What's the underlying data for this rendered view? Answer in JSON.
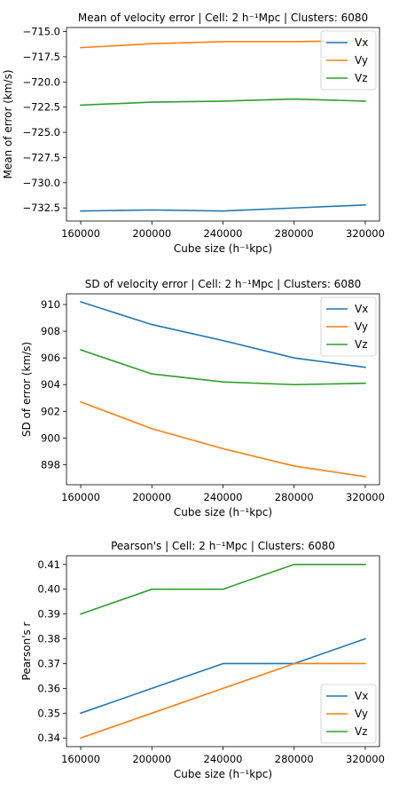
{
  "chart_data": [
    {
      "type": "line",
      "title": "Mean of velocity error | Cell: 2 h⁻¹Mpc | Clusters: 6080",
      "xlabel": "Cube size (h⁻¹kpc)",
      "ylabel": "Mean of error (km/s)",
      "x": [
        160000,
        200000,
        240000,
        280000,
        320000
      ],
      "xticks": [
        "160000",
        "200000",
        "240000",
        "280000",
        "320000"
      ],
      "ylim": [
        -733.8,
        -714.6
      ],
      "yticks": [
        -715.0,
        -717.5,
        -720.0,
        -722.5,
        -725.0,
        -727.5,
        -730.0,
        -732.5
      ],
      "ytick_labels": [
        "−715.0",
        "−717.5",
        "−720.0",
        "−722.5",
        "−725.0",
        "−727.5",
        "−730.0",
        "−732.5"
      ],
      "legend": "top-right",
      "series": [
        {
          "name": "Vx",
          "color": "#1f77b4",
          "values": [
            -732.8,
            -732.7,
            -732.8,
            -732.5,
            -732.2
          ]
        },
        {
          "name": "Vy",
          "color": "#ff7f0e",
          "values": [
            -716.6,
            -716.2,
            -716.0,
            -716.0,
            -715.9
          ]
        },
        {
          "name": "Vz",
          "color": "#2ca02c",
          "values": [
            -722.3,
            -722.0,
            -721.9,
            -721.7,
            -721.9
          ]
        }
      ]
    },
    {
      "type": "line",
      "title": "SD of velocity error | Cell: 2 h⁻¹Mpc | Clusters: 6080",
      "xlabel": "Cube size (h⁻¹kpc)",
      "ylabel": "SD of error (km/s)",
      "x": [
        160000,
        200000,
        240000,
        280000,
        320000
      ],
      "xticks": [
        "160000",
        "200000",
        "240000",
        "280000",
        "320000"
      ],
      "ylim": [
        896.5,
        910.8
      ],
      "yticks": [
        898,
        900,
        902,
        904,
        906,
        908,
        910
      ],
      "ytick_labels": [
        "898",
        "900",
        "902",
        "904",
        "906",
        "908",
        "910"
      ],
      "legend": "top-right",
      "series": [
        {
          "name": "Vx",
          "color": "#1f77b4",
          "values": [
            910.2,
            908.5,
            907.3,
            906.0,
            905.3
          ]
        },
        {
          "name": "Vy",
          "color": "#ff7f0e",
          "values": [
            902.7,
            900.7,
            899.2,
            897.9,
            897.1
          ]
        },
        {
          "name": "Vz",
          "color": "#2ca02c",
          "values": [
            906.6,
            904.8,
            904.2,
            904.0,
            904.1
          ]
        }
      ]
    },
    {
      "type": "line",
      "title": "Pearson's | Cell: 2 h⁻¹Mpc | Clusters: 6080",
      "xlabel": "Cube size (h⁻¹kpc)",
      "ylabel": "Pearson's r",
      "x": [
        160000,
        200000,
        240000,
        280000,
        320000
      ],
      "xticks": [
        "160000",
        "200000",
        "240000",
        "280000",
        "320000"
      ],
      "ylim": [
        0.3365,
        0.4135
      ],
      "yticks": [
        0.34,
        0.35,
        0.36,
        0.37,
        0.38,
        0.39,
        0.4,
        0.41
      ],
      "ytick_labels": [
        "0.34",
        "0.35",
        "0.36",
        "0.37",
        "0.38",
        "0.39",
        "0.40",
        "0.41"
      ],
      "legend": "bottom-right",
      "series": [
        {
          "name": "Vx",
          "color": "#1f77b4",
          "values": [
            0.35,
            0.36,
            0.37,
            0.37,
            0.38
          ]
        },
        {
          "name": "Vy",
          "color": "#ff7f0e",
          "values": [
            0.34,
            0.35,
            0.36,
            0.37,
            0.37
          ]
        },
        {
          "name": "Vz",
          "color": "#2ca02c",
          "values": [
            0.39,
            0.4,
            0.4,
            0.41,
            0.41
          ]
        }
      ]
    }
  ]
}
